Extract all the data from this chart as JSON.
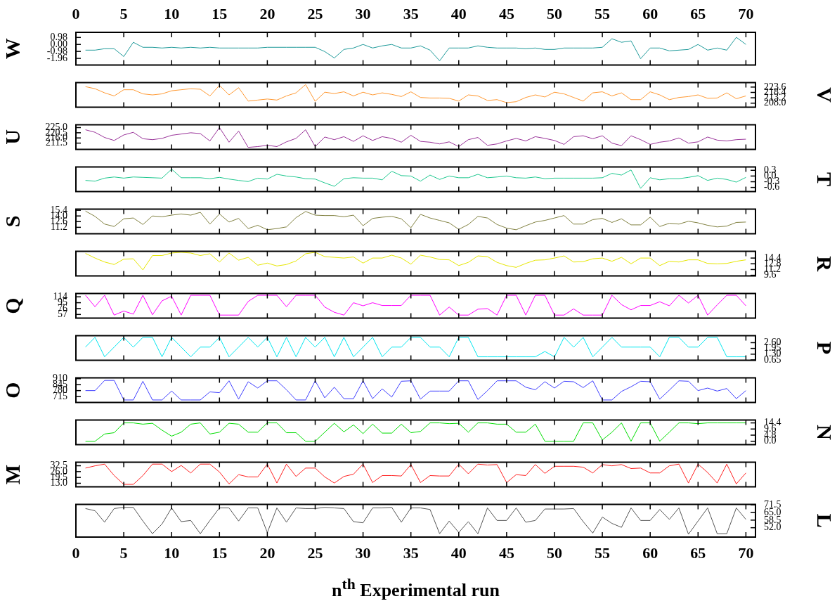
{
  "chart_data": [
    {
      "type": "line",
      "ylabel": "W",
      "tick_labels": "y",
      "x": [
        1,
        2,
        3,
        4,
        5,
        6,
        7,
        8,
        9,
        10,
        11,
        12,
        13,
        14,
        15,
        16,
        17,
        18,
        19,
        20,
        21,
        22,
        23,
        24,
        25,
        26,
        27,
        28,
        29,
        30,
        31,
        32,
        33,
        34,
        35,
        36,
        37,
        38,
        39,
        40,
        41,
        42,
        43,
        44,
        45,
        46,
        47,
        48,
        49,
        50,
        51,
        52,
        53,
        54,
        55,
        56,
        57,
        58,
        59,
        60,
        61,
        62,
        63,
        64,
        65,
        66,
        67,
        68,
        69,
        70
      ],
      "xlim": [
        0,
        71
      ],
      "xticks": [
        0,
        5,
        10,
        15,
        20,
        25,
        30,
        35,
        40,
        45,
        50,
        55,
        60,
        65,
        70
      ],
      "x2lim": [
        0,
        71
      ],
      "x2ticks": [
        0,
        5,
        10,
        15,
        20,
        25,
        30,
        35,
        40,
        45,
        50,
        55,
        60,
        65,
        70
      ],
      "ylim": [
        -2.9,
        1.7
      ],
      "yticks": [
        {
          "value": -1.96,
          "label": "-1.96"
        },
        {
          "value": -0.98,
          "label": "-0.98"
        },
        {
          "value": 0,
          "label": "0.00"
        },
        0.98
      ],
      "series": [
        {
          "color": "#1f9a9a",
          "values": [
            -0.8,
            -0.8,
            -0.6,
            -0.6,
            -1.7,
            0.3,
            -0.4,
            -0.4,
            -0.5,
            -0.4,
            -0.5,
            -0.4,
            -0.5,
            -0.4,
            -0.5,
            -0.5,
            -0.5,
            -0.5,
            -0.5,
            -0.4,
            -0.4,
            -0.4,
            -0.4,
            -0.4,
            -0.4,
            -1.0,
            -1.9,
            -0.7,
            -0.5,
            0,
            -0.5,
            -0.2,
            0,
            -0.5,
            -0.5,
            -0.2,
            -0.8,
            -2.3,
            -0.5,
            -0.5,
            -0.5,
            -0.2,
            -0.4,
            -0.5,
            -0.5,
            -0.5,
            -0.6,
            -0.5,
            -0.7,
            -0.7,
            -0.5,
            -0.5,
            -0.5,
            -0.5,
            -0.4,
            0.8,
            0.3,
            0.5,
            -2.0,
            -0.5,
            -0.5,
            -0.9,
            -0.8,
            -0.7,
            0,
            -0.8,
            -0.5,
            -0.8,
            1.0,
            0
          ]
        }
      ]
    },
    {
      "type": "line",
      "y2label": "V",
      "tick_labels": "y",
      "x": [
        1,
        2,
        3,
        4,
        5,
        6,
        7,
        8,
        9,
        10,
        11,
        12,
        13,
        14,
        15,
        16,
        17,
        18,
        19,
        20,
        21,
        22,
        23,
        24,
        25,
        26,
        27,
        28,
        29,
        30,
        31,
        32,
        33,
        34,
        35,
        36,
        37,
        38,
        39,
        40,
        41,
        42,
        43,
        44,
        45,
        46,
        47,
        48,
        49,
        50,
        51,
        52,
        53,
        54,
        55,
        56,
        57,
        58,
        59,
        60,
        61,
        62,
        63,
        64,
        65,
        66,
        67,
        68,
        69,
        70
      ],
      "xlim": [
        0,
        71
      ],
      "xticks": [
        0,
        5,
        10,
        15,
        20,
        25,
        30,
        35,
        40,
        45,
        50,
        55,
        60,
        65,
        70
      ],
      "y2lim": [
        204,
        228
      ],
      "y2ticks": [
        {
          "value": 208,
          "label": "208.0"
        },
        213.2,
        218.4,
        223.6
      ],
      "series": [
        {
          "color": "#ff9933",
          "axis": "y2",
          "values": [
            224,
            222,
            218,
            215,
            221,
            221,
            217,
            216,
            217,
            220,
            221,
            222,
            221.5,
            215,
            225.3,
            216,
            223,
            210,
            211,
            212,
            211,
            215,
            218,
            226,
            209.8,
            218.6,
            217.3,
            219,
            215,
            218.6,
            216,
            218,
            216.5,
            214.4,
            219,
            213.5,
            213,
            213,
            212.7,
            210,
            216,
            215,
            210.6,
            211.4,
            208.5,
            209.4,
            213.5,
            216,
            214,
            218.6,
            217,
            213.5,
            210,
            218,
            219,
            215,
            218,
            211.4,
            211.4,
            219,
            216,
            211.4,
            213.5,
            214.4,
            216,
            212.7,
            213,
            218,
            212.3,
            215
          ]
        }
      ]
    },
    {
      "type": "line",
      "ylabel": "U",
      "tick_labels": "y",
      "x": [
        1,
        2,
        3,
        4,
        5,
        6,
        7,
        8,
        9,
        10,
        11,
        12,
        13,
        14,
        15,
        16,
        17,
        18,
        19,
        20,
        21,
        22,
        23,
        24,
        25,
        26,
        27,
        28,
        29,
        30,
        31,
        32,
        33,
        34,
        35,
        36,
        37,
        38,
        39,
        40,
        41,
        42,
        43,
        44,
        45,
        46,
        47,
        48,
        49,
        50,
        51,
        52,
        53,
        54,
        55,
        56,
        57,
        58,
        59,
        60,
        61,
        62,
        63,
        64,
        65,
        66,
        67,
        68,
        69,
        70
      ],
      "xlim": [
        0,
        71
      ],
      "xticks": [
        0,
        5,
        10,
        15,
        20,
        25,
        30,
        35,
        40,
        45,
        50,
        55,
        60,
        65,
        70
      ],
      "ylim": [
        206,
        227.5
      ],
      "yticks": [
        211.5,
        {
          "value": 216,
          "label": "216.0"
        },
        220.5,
        {
          "value": 225,
          "label": "225.0"
        }
      ],
      "series": [
        {
          "color": "#993399",
          "values": [
            223.1,
            220.9,
            216.4,
            213.8,
            218.6,
            220.9,
            215.3,
            214.5,
            215.6,
            218.3,
            219.4,
            220.5,
            219.8,
            213.4,
            225,
            212.3,
            222,
            207.8,
            208.5,
            209.6,
            208.5,
            212.6,
            215.6,
            223.1,
            208.5,
            216.8,
            214.5,
            217.1,
            213,
            217.9,
            213.8,
            217.1,
            215.6,
            212.3,
            218.3,
            213,
            212.3,
            210.8,
            212.6,
            208.5,
            214.5,
            216.4,
            209.6,
            210.8,
            213.4,
            215.6,
            213.4,
            217.1,
            215.6,
            213.8,
            210.4,
            217.1,
            217.9,
            215.3,
            217.9,
            211.5,
            209.3,
            217.9,
            214.5,
            210.4,
            212.3,
            213.4,
            216,
            211.5,
            212.6,
            216.8,
            214.1,
            213.4,
            214.5,
            214.9
          ]
        }
      ]
    },
    {
      "type": "line",
      "y2label": "T",
      "tick_labels": "y",
      "x": [
        1,
        2,
        3,
        4,
        5,
        6,
        7,
        8,
        9,
        10,
        11,
        12,
        13,
        14,
        15,
        16,
        17,
        18,
        19,
        20,
        21,
        22,
        23,
        24,
        25,
        26,
        27,
        28,
        29,
        30,
        31,
        32,
        33,
        34,
        35,
        36,
        37,
        38,
        39,
        40,
        41,
        42,
        43,
        44,
        45,
        46,
        47,
        48,
        49,
        50,
        51,
        52,
        53,
        54,
        55,
        56,
        57,
        58,
        59,
        60,
        61,
        62,
        63,
        64,
        65,
        66,
        67,
        68,
        69,
        70
      ],
      "xlim": [
        0,
        71
      ],
      "xticks": [
        0,
        5,
        10,
        15,
        20,
        25,
        30,
        35,
        40,
        45,
        50,
        55,
        60,
        65,
        70
      ],
      "y2lim": [
        -0.82,
        0.48
      ],
      "y2ticks": [
        -0.6,
        -0.3,
        {
          "value": 0,
          "label": "0.0"
        },
        0.3
      ],
      "series": [
        {
          "color": "#20c890",
          "axis": "y2",
          "values": [
            -0.23,
            -0.27,
            -0.11,
            -0.05,
            -0.11,
            -0.05,
            -0.07,
            -0.09,
            -0.11,
            0.36,
            -0.09,
            -0.09,
            -0.09,
            -0.14,
            -0.07,
            -0.16,
            -0.23,
            -0.29,
            -0.11,
            -0.16,
            0.09,
            0,
            -0.05,
            -0.14,
            -0.16,
            -0.36,
            -0.54,
            -0.14,
            -0.09,
            -0.11,
            -0.11,
            -0.2,
            0.25,
            0.02,
            0,
            -0.27,
            0.05,
            -0.18,
            0,
            -0.09,
            -0.09,
            0.09,
            -0.09,
            -0.05,
            0,
            -0.09,
            -0.11,
            -0.05,
            -0.14,
            -0.11,
            -0.11,
            -0.11,
            -0.11,
            -0.11,
            -0.09,
            0.14,
            0.05,
            0.32,
            -0.65,
            -0.09,
            -0.2,
            -0.14,
            -0.14,
            -0.07,
            0.02,
            -0.23,
            -0.11,
            -0.18,
            -0.32,
            -0.07
          ]
        }
      ]
    },
    {
      "type": "line",
      "ylabel": "S",
      "tick_labels": "y",
      "x": [
        1,
        2,
        3,
        4,
        5,
        6,
        7,
        8,
        9,
        10,
        11,
        12,
        13,
        14,
        15,
        16,
        17,
        18,
        19,
        20,
        21,
        22,
        23,
        24,
        25,
        26,
        27,
        28,
        29,
        30,
        31,
        32,
        33,
        34,
        35,
        36,
        37,
        38,
        39,
        40,
        41,
        42,
        43,
        44,
        45,
        46,
        47,
        48,
        49,
        50,
        51,
        52,
        53,
        54,
        55,
        56,
        57,
        58,
        59,
        60,
        61,
        62,
        63,
        64,
        65,
        66,
        67,
        68,
        69,
        70
      ],
      "xlim": [
        0,
        71
      ],
      "xticks": [
        0,
        5,
        10,
        15,
        20,
        25,
        30,
        35,
        40,
        45,
        50,
        55,
        60,
        65,
        70
      ],
      "ylim": [
        9.6,
        15.7
      ],
      "yticks": [
        11.2,
        12.6,
        {
          "value": 14,
          "label": "14.0"
        },
        15.4
      ],
      "series": [
        {
          "color": "#808040",
          "values": [
            15.2,
            13.9,
            12.0,
            11.4,
            13.3,
            13.5,
            11.9,
            14.0,
            13.8,
            14.2,
            14.5,
            14.2,
            14.9,
            12.0,
            14.5,
            12.5,
            13.4,
            10.9,
            11.7,
            10.6,
            10.9,
            11.3,
            13.6,
            15.1,
            14.2,
            14.1,
            14.1,
            13.8,
            14.2,
            11.6,
            13.4,
            13.7,
            13.9,
            13.3,
            11.1,
            14.4,
            13.5,
            12.9,
            12.3,
            10.7,
            11.9,
            13.9,
            13.5,
            11.9,
            11.0,
            10.6,
            11.6,
            12.5,
            12.9,
            13.5,
            14.1,
            12.0,
            12.0,
            13.1,
            13.4,
            12.4,
            13.3,
            11.8,
            11.8,
            13.7,
            11.4,
            12.2,
            12.0,
            12.7,
            12.3,
            11.7,
            11.3,
            11.5,
            12.4,
            12.5
          ]
        }
      ]
    },
    {
      "type": "line",
      "y2label": "R",
      "tick_labels": "y",
      "x": [
        1,
        2,
        3,
        4,
        5,
        6,
        7,
        8,
        9,
        10,
        11,
        12,
        13,
        14,
        15,
        16,
        17,
        18,
        19,
        20,
        21,
        22,
        23,
        24,
        25,
        26,
        27,
        28,
        29,
        30,
        31,
        32,
        33,
        34,
        35,
        36,
        37,
        38,
        39,
        40,
        41,
        42,
        43,
        44,
        45,
        46,
        47,
        48,
        49,
        50,
        51,
        52,
        53,
        54,
        55,
        56,
        57,
        58,
        59,
        60,
        61,
        62,
        63,
        64,
        65,
        66,
        67,
        68,
        69,
        70
      ],
      "xlim": [
        0,
        71
      ],
      "xticks": [
        0,
        5,
        10,
        15,
        20,
        25,
        30,
        35,
        40,
        45,
        50,
        55,
        60,
        65,
        70
      ],
      "y2lim": [
        9.4,
        16.3
      ],
      "y2ticks": [
        9.6,
        11.2,
        12.8,
        14.4
      ],
      "series": [
        {
          "color": "#e6e600",
          "axis": "y2",
          "values": [
            15.7,
            14.4,
            13.3,
            12.6,
            14.1,
            14.2,
            11.1,
            15.1,
            15.1,
            15.8,
            16.0,
            15.8,
            15.1,
            15.6,
            13.3,
            15.8,
            13.8,
            14.6,
            12.4,
            13.0,
            12.2,
            12.6,
            13.6,
            15.6,
            16.0,
            14.8,
            14.6,
            14.4,
            14.7,
            13.0,
            14.4,
            14.4,
            15.2,
            14.4,
            12.7,
            15.2,
            14.7,
            14.0,
            13.9,
            12.3,
            13.2,
            15.0,
            14.8,
            13.2,
            12.3,
            11.8,
            12.9,
            13.8,
            13.9,
            14.4,
            15.0,
            13.3,
            13.4,
            14.2,
            14.4,
            13.5,
            14.6,
            12.8,
            14.4,
            14.4,
            12.3,
            13.5,
            13.3,
            13.9,
            13.9,
            12.9,
            12.8,
            12.9,
            13.5,
            13.9
          ]
        }
      ]
    },
    {
      "type": "line",
      "ylabel": "Q",
      "tick_labels": "y",
      "x": [
        1,
        2,
        3,
        4,
        5,
        6,
        7,
        8,
        9,
        10,
        11,
        12,
        13,
        14,
        15,
        16,
        17,
        18,
        19,
        20,
        21,
        22,
        23,
        24,
        25,
        26,
        27,
        28,
        29,
        30,
        31,
        32,
        33,
        34,
        35,
        36,
        37,
        38,
        39,
        40,
        41,
        42,
        43,
        44,
        45,
        46,
        47,
        48,
        49,
        50,
        51,
        52,
        53,
        54,
        55,
        56,
        57,
        58,
        59,
        60,
        61,
        62,
        63,
        64,
        65,
        66,
        67,
        68,
        69,
        70
      ],
      "xlim": [
        0,
        71
      ],
      "xticks": [
        0,
        5,
        10,
        15,
        20,
        25,
        30,
        35,
        40,
        45,
        50,
        55,
        60,
        65,
        70
      ],
      "ylim": [
        45,
        125
      ],
      "yticks": [
        57,
        76,
        95,
        114
      ],
      "series": [
        {
          "color": "#ff00ff",
          "values": [
            119,
            82,
            119,
            55,
            68,
            58,
            119,
            56,
            101,
            116,
            55,
            119,
            119,
            119,
            55,
            55,
            55,
            99,
            119,
            119,
            119,
            82,
            119,
            119,
            119,
            81,
            64,
            55,
            95,
            85,
            95,
            86,
            86,
            86,
            119,
            119,
            119,
            55,
            81,
            55,
            55,
            74,
            76,
            55,
            119,
            119,
            55,
            119,
            119,
            55,
            55,
            75,
            55,
            55,
            55,
            119,
            89,
            72,
            86,
            86,
            98,
            85,
            119,
            94,
            119,
            55,
            88,
            119,
            119,
            85
          ]
        }
      ]
    },
    {
      "type": "line",
      "y2label": "P",
      "tick_labels": "y",
      "x": [
        1,
        2,
        3,
        4,
        5,
        6,
        7,
        8,
        9,
        10,
        11,
        12,
        13,
        14,
        15,
        16,
        17,
        18,
        19,
        20,
        21,
        22,
        23,
        24,
        25,
        26,
        27,
        28,
        29,
        30,
        31,
        32,
        33,
        34,
        35,
        36,
        37,
        38,
        39,
        40,
        41,
        42,
        43,
        44,
        45,
        46,
        47,
        48,
        49,
        50,
        51,
        52,
        53,
        54,
        55,
        56,
        57,
        58,
        59,
        60,
        61,
        62,
        63,
        64,
        65,
        66,
        67,
        68,
        69,
        70
      ],
      "xlim": [
        0,
        71
      ],
      "xticks": [
        0,
        5,
        10,
        15,
        20,
        25,
        30,
        35,
        40,
        45,
        50,
        55,
        60,
        65,
        70
      ],
      "y2lim": [
        0.6,
        3.4
      ],
      "y2ticks": [
        0.65,
        {
          "value": 1.3,
          "label": "1.30"
        },
        1.95,
        {
          "value": 2.6,
          "label": "2.60"
        }
      ],
      "series": [
        {
          "color": "#00e5ee",
          "axis": "y2",
          "values": [
            2.1,
            3.2,
            1.0,
            2.1,
            3.2,
            2.1,
            3.2,
            3.2,
            1.0,
            3.2,
            2.1,
            1.0,
            2.1,
            2.1,
            3.2,
            1.0,
            2.1,
            3.2,
            2.1,
            3.2,
            1.0,
            3.2,
            1.0,
            3.2,
            2.1,
            3.2,
            1.0,
            3.2,
            1.0,
            2.1,
            3.2,
            1.0,
            2.1,
            2.1,
            3.2,
            3.2,
            2.1,
            2.1,
            1.0,
            3.2,
            3.2,
            1.0,
            1.0,
            1.0,
            1.0,
            1.0,
            1.0,
            1.0,
            1.6,
            1.0,
            3.2,
            2.1,
            3.2,
            1.0,
            2.1,
            3.2,
            2.1,
            2.1,
            2.1,
            2.1,
            1.0,
            3.2,
            3.2,
            2.1,
            2.1,
            3.2,
            3.2,
            1.0,
            1.0,
            1.0
          ]
        }
      ]
    },
    {
      "type": "line",
      "ylabel": "O",
      "tick_labels": "y",
      "x": [
        1,
        2,
        3,
        4,
        5,
        6,
        7,
        8,
        9,
        10,
        11,
        12,
        13,
        14,
        15,
        16,
        17,
        18,
        19,
        20,
        21,
        22,
        23,
        24,
        25,
        26,
        27,
        28,
        29,
        30,
        31,
        32,
        33,
        34,
        35,
        36,
        37,
        38,
        39,
        40,
        41,
        42,
        43,
        44,
        45,
        46,
        47,
        48,
        49,
        50,
        51,
        52,
        53,
        54,
        55,
        56,
        57,
        58,
        59,
        60,
        61,
        62,
        63,
        64,
        65,
        66,
        67,
        68,
        69,
        70
      ],
      "xlim": [
        0,
        71
      ],
      "xticks": [
        0,
        5,
        10,
        15,
        20,
        25,
        30,
        35,
        40,
        45,
        50,
        55,
        60,
        65,
        70
      ],
      "ylim": [
        650,
        920
      ],
      "yticks": [
        715,
        780,
        845,
        910
      ],
      "series": [
        {
          "color": "#4040ff",
          "values": [
            780,
            780,
            891,
            891,
            678,
            678,
            882,
            678,
            678,
            775,
            678,
            678,
            678,
            766,
            757,
            887,
            687,
            877,
            808,
            887,
            887,
            789,
            678,
            678,
            887,
            701,
            817,
            692,
            692,
            887,
            692,
            799,
            710,
            882,
            887,
            687,
            775,
            775,
            775,
            887,
            887,
            683,
            780,
            887,
            887,
            887,
            817,
            789,
            877,
            808,
            882,
            877,
            813,
            887,
            678,
            678,
            771,
            822,
            882,
            877,
            687,
            785,
            887,
            882,
            780,
            808,
            775,
            803,
            692,
            780
          ]
        }
      ]
    },
    {
      "type": "line",
      "y2label": "N",
      "tick_labels": "y",
      "x": [
        1,
        2,
        3,
        4,
        5,
        6,
        7,
        8,
        9,
        10,
        11,
        12,
        13,
        14,
        15,
        16,
        17,
        18,
        19,
        20,
        21,
        22,
        23,
        24,
        25,
        26,
        27,
        28,
        29,
        30,
        31,
        32,
        33,
        34,
        35,
        36,
        37,
        38,
        39,
        40,
        41,
        42,
        43,
        44,
        45,
        46,
        47,
        48,
        49,
        50,
        51,
        52,
        53,
        54,
        55,
        56,
        57,
        58,
        59,
        60,
        61,
        62,
        63,
        64,
        65,
        66,
        67,
        68,
        69,
        70
      ],
      "xlim": [
        0,
        71
      ],
      "xticks": [
        0,
        5,
        10,
        15,
        20,
        25,
        30,
        35,
        40,
        45,
        50,
        55,
        60,
        65,
        70
      ],
      "y2lim": [
        -2.7,
        16.7
      ],
      "y2ticks": [
        {
          "value": 0,
          "label": "0.0"
        },
        4.8,
        9.6,
        14.4
      ],
      "series": [
        {
          "color": "#00dd00",
          "axis": "y2",
          "values": [
            0,
            0,
            5.7,
            6.7,
            14.4,
            14.4,
            13.4,
            14.1,
            8.7,
            4.0,
            7.1,
            13.4,
            14.4,
            5.7,
            7.1,
            14.1,
            13.4,
            7.1,
            7.1,
            14.4,
            14.4,
            6.7,
            6.7,
            0,
            0,
            7.1,
            14.1,
            7.4,
            12.8,
            6.0,
            13.4,
            6.4,
            6.4,
            13.4,
            6.7,
            7.7,
            14.4,
            14.4,
            13.8,
            14.1,
            7.1,
            14.4,
            14.4,
            13.4,
            13.4,
            7.1,
            7.1,
            13.4,
            0,
            0,
            0,
            0,
            14.4,
            14.4,
            1.0,
            7.1,
            14.4,
            0,
            14.4,
            14.4,
            0,
            7.1,
            14.4,
            14.4,
            13.8,
            14.4,
            14.4,
            14.4,
            14.4,
            14.4
          ]
        }
      ]
    },
    {
      "type": "line",
      "ylabel": "M",
      "tick_labels": "y",
      "x": [
        1,
        2,
        3,
        4,
        5,
        6,
        7,
        8,
        9,
        10,
        11,
        12,
        13,
        14,
        15,
        16,
        17,
        18,
        19,
        20,
        21,
        22,
        23,
        24,
        25,
        26,
        27,
        28,
        29,
        30,
        31,
        32,
        33,
        34,
        35,
        36,
        37,
        38,
        39,
        40,
        41,
        42,
        43,
        44,
        45,
        46,
        47,
        48,
        49,
        50,
        51,
        52,
        53,
        54,
        55,
        56,
        57,
        58,
        59,
        60,
        61,
        62,
        63,
        64,
        65,
        66,
        67,
        68,
        69,
        70
      ],
      "xlim": [
        0,
        71
      ],
      "xticks": [
        0,
        5,
        10,
        15,
        20,
        25,
        30,
        35,
        40,
        45,
        50,
        55,
        60,
        65,
        70
      ],
      "ylim": [
        9,
        36.5
      ],
      "yticks": [
        {
          "value": 13,
          "label": "13.0"
        },
        19.5,
        {
          "value": 26,
          "label": "26.0"
        },
        32.5
      ],
      "series": [
        {
          "color": "#ff2020",
          "values": [
            29.9,
            32.4,
            34.3,
            21.6,
            11.8,
            11.8,
            21.6,
            34.3,
            34.3,
            26,
            32.8,
            24.5,
            34.3,
            34.3,
            25.5,
            12.3,
            22.6,
            20.1,
            20.1,
            34.3,
            13.3,
            34.3,
            20.6,
            29.9,
            29.9,
            20.1,
            13.3,
            20.6,
            23.1,
            34.3,
            13.8,
            21.6,
            21.6,
            21.1,
            33.8,
            13.8,
            21.6,
            21.1,
            21.1,
            34.3,
            23.6,
            34.3,
            33.3,
            33.8,
            13.8,
            22.6,
            21.6,
            33.8,
            24,
            31.9,
            31.9,
            31.9,
            30.9,
            24.5,
            33.8,
            32.4,
            33.8,
            29.4,
            29.9,
            24.5,
            24.5,
            32.4,
            34.3,
            13.3,
            34.3,
            25,
            13.3,
            34.3,
            12.3,
            24.5
          ]
        }
      ]
    },
    {
      "type": "line",
      "y2label": "L",
      "xlabel": "n$^{th}$ Experimental run",
      "x": [
        1,
        2,
        3,
        4,
        5,
        6,
        7,
        8,
        9,
        10,
        11,
        12,
        13,
        14,
        15,
        16,
        17,
        18,
        19,
        20,
        21,
        22,
        23,
        24,
        25,
        26,
        27,
        28,
        29,
        30,
        31,
        32,
        33,
        34,
        35,
        36,
        37,
        38,
        39,
        40,
        41,
        42,
        43,
        44,
        45,
        46,
        47,
        48,
        49,
        50,
        51,
        52,
        53,
        54,
        55,
        56,
        57,
        58,
        59,
        60,
        61,
        62,
        63,
        64,
        65,
        66,
        67,
        68,
        69,
        70
      ],
      "xlim": [
        0,
        71
      ],
      "xticks": [
        0,
        5,
        10,
        15,
        20,
        25,
        30,
        35,
        40,
        45,
        50,
        55,
        60,
        65,
        70
      ],
      "y2lim": [
        44,
        72
      ],
      "y2ticks": [
        {
          "value": 52,
          "label": "52.0"
        },
        58.5,
        {
          "value": 65,
          "label": "65.0"
        },
        71.5
      ],
      "series": [
        {
          "color": "#555555",
          "axis": "y2",
          "values": [
            68.4,
            66.5,
            56.7,
            68.4,
            69.4,
            69.4,
            57.7,
            46.9,
            55.2,
            68.9,
            57.2,
            58.2,
            46.9,
            58.2,
            68.9,
            68.9,
            57.7,
            68.9,
            68.9,
            47.9,
            68.9,
            56.7,
            68.9,
            68.4,
            68.4,
            69.4,
            68.9,
            68.4,
            57.2,
            56.2,
            68.9,
            68.9,
            69.4,
            56.7,
            68.9,
            68.9,
            67.6,
            46.9,
            57.7,
            47.9,
            57.2,
            46.9,
            68.9,
            58.2,
            58.2,
            68.9,
            56.7,
            58.2,
            68.0,
            68.0,
            68.0,
            68.4,
            57.2,
            47.4,
            61.1,
            55.7,
            52.3,
            68.9,
            58.2,
            58.2,
            67.6,
            59.1,
            68.9,
            46.4,
            57.7,
            68.9,
            46.9,
            46.9,
            68.9,
            59.1
          ]
        }
      ]
    }
  ]
}
